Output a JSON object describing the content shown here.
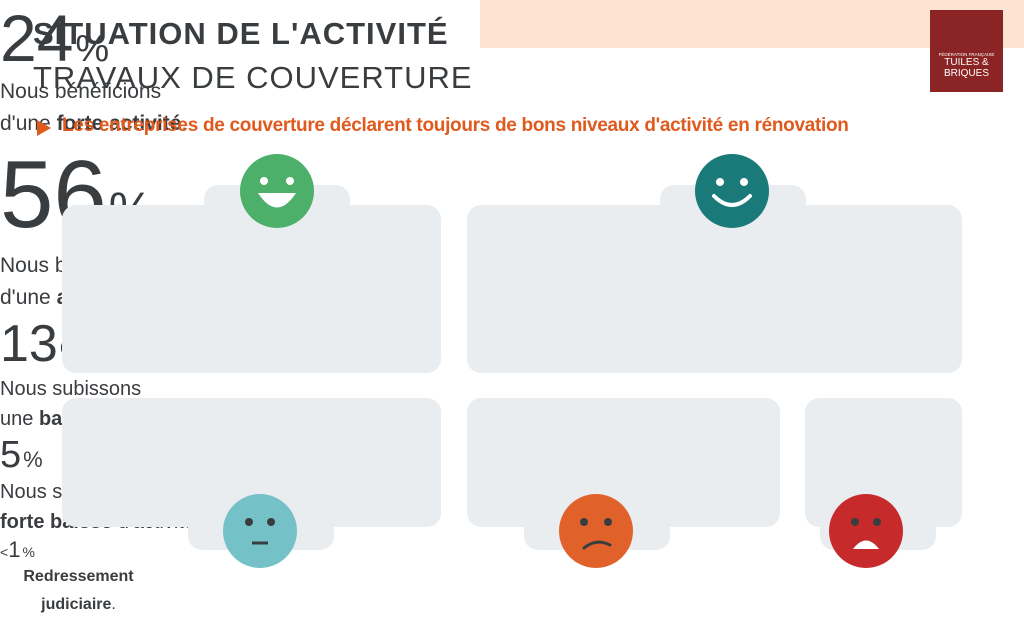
{
  "header": {
    "title": "SITUATION DE L'ACTIVITÉ",
    "subtitle": "TRAVAUX DE COUVERTURE",
    "tagline": "Les entreprises de couverture déclarent toujours de bons niveaux d'activité en rénovation"
  },
  "logo": {
    "line1": "FÉDÉRATION FRANÇAISE",
    "line2": "TUILES &",
    "line3": "BRIQUES"
  },
  "cards": [
    {
      "value": "24",
      "unit": "%",
      "lines": [
        [
          {
            "text": "Nous bénéficions",
            "bold": false
          }
        ],
        [
          {
            "text": "d'une ",
            "bold": false
          },
          {
            "text": "forte activité",
            "bold": true
          },
          {
            "text": ".",
            "bold": false
          }
        ]
      ]
    },
    {
      "value": "56",
      "unit": "%",
      "lines": [
        [
          {
            "text": "Nous bénéficions",
            "bold": false
          }
        ],
        [
          {
            "text": "d'une ",
            "bold": false
          },
          {
            "text": "activité normale",
            "bold": true
          },
          {
            "text": ".",
            "bold": false
          }
        ]
      ]
    },
    {
      "value": "13",
      "unit": "%",
      "lines": [
        [
          {
            "text": "Nous subissons",
            "bold": false
          }
        ],
        [
          {
            "text": "une ",
            "bold": false
          },
          {
            "text": "baisse d'activité",
            "bold": true
          },
          {
            "text": ".",
            "bold": false
          }
        ]
      ]
    },
    {
      "value": "5",
      "unit": "%",
      "lines": [
        [
          {
            "text": "Nous subissons une",
            "bold": false
          }
        ],
        [
          {
            "text": "forte baisse",
            "bold": true
          },
          {
            "text": " d'activité.",
            "bold": false
          }
        ]
      ]
    },
    {
      "prefix": "<",
      "value": "1",
      "unit": "%",
      "lines": [
        [
          {
            "text": "Redressement",
            "bold": true
          }
        ],
        [
          {
            "text": "judiciaire",
            "bold": true
          },
          {
            "text": ".",
            "bold": false
          }
        ]
      ]
    }
  ]
}
